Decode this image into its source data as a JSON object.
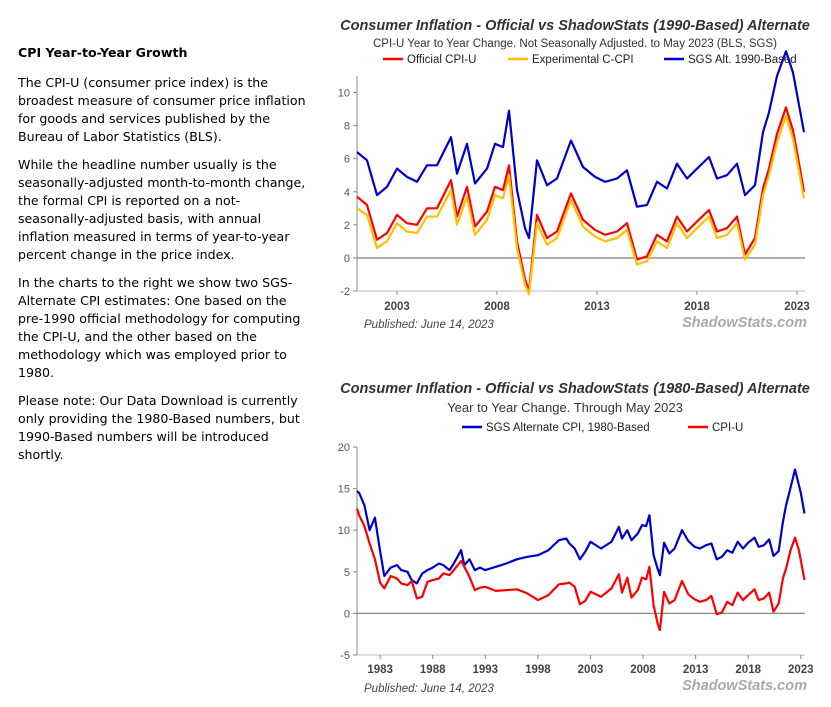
{
  "sidebar": {
    "heading": "CPI Year-to-Year Growth",
    "paragraphs": [
      "The CPI-U (consumer price index) is the broadest measure of consumer price inflation for goods and services published by the Bureau of Labor Statistics (BLS).",
      "While the headline number usually is the seasonally-adjusted month-to-month change, the formal CPI is reported on a not-seasonally-adjusted basis, with annual inflation measured in terms of year-to-year percent change in the price index.",
      "In the charts to the right we show two SGS-Alternate CPI estimates: One based on the pre-1990 official methodology for computing the CPI-U, and the other based on the methodology which was employed prior to 1980.",
      "Please note:  Our Data Download is currently only providing the 1980-Based numbers, but 1990-Based numbers will be introduced shortly."
    ]
  },
  "chart_data": [
    {
      "type": "line",
      "title": "Consumer Inflation - Official vs ShadowStats (1990-Based) Alternate",
      "subtitle": "CPI-U Year to Year Change. Not Seasonally Adjusted. to May 2023  (BLS, SGS)",
      "published": "Published: June 14, 2023",
      "watermark": "ShadowStats.com",
      "xlim": [
        2001.0,
        2023.4
      ],
      "ylim": [
        -2,
        11
      ],
      "x_ticks": [
        2003,
        2008,
        2013,
        2018,
        2023
      ],
      "y_ticks": [
        -2,
        0,
        2,
        4,
        6,
        8,
        10
      ],
      "zero_line": true,
      "legend_position": "top",
      "series": [
        {
          "name": "Official CPI-U",
          "color": "#ff0000",
          "x": [
            2001.0,
            2001.5,
            2002.0,
            2002.5,
            2003.0,
            2003.5,
            2004.0,
            2004.5,
            2005.0,
            2005.7,
            2006.0,
            2006.5,
            2006.9,
            2007.5,
            2007.9,
            2008.3,
            2008.6,
            2009.0,
            2009.4,
            2009.6,
            2010.0,
            2010.5,
            2011.0,
            2011.7,
            2012.3,
            2012.9,
            2013.4,
            2014.0,
            2014.5,
            2015.0,
            2015.5,
            2016.0,
            2016.5,
            2017.0,
            2017.5,
            2018.0,
            2018.6,
            2019.0,
            2019.5,
            2020.0,
            2020.4,
            2020.9,
            2021.3,
            2021.6,
            2022.0,
            2022.45,
            2022.8,
            2023.0,
            2023.35
          ],
          "y": [
            3.7,
            3.2,
            1.1,
            1.5,
            2.6,
            2.1,
            2.0,
            3.0,
            3.0,
            4.7,
            2.5,
            4.3,
            1.9,
            2.8,
            4.3,
            4.1,
            5.6,
            1.0,
            -1.3,
            -2.0,
            2.6,
            1.2,
            1.6,
            3.9,
            2.3,
            1.7,
            1.4,
            1.6,
            2.1,
            -0.1,
            0.1,
            1.4,
            1.0,
            2.5,
            1.6,
            2.2,
            2.9,
            1.6,
            1.8,
            2.5,
            0.2,
            1.2,
            4.2,
            5.4,
            7.5,
            9.1,
            7.7,
            6.4,
            4.0
          ]
        },
        {
          "name": "Experimental C-CPI",
          "color": "#ffc000",
          "x": [
            2001.0,
            2001.5,
            2002.0,
            2002.5,
            2003.0,
            2003.5,
            2004.0,
            2004.5,
            2005.0,
            2005.7,
            2006.0,
            2006.5,
            2006.9,
            2007.5,
            2007.9,
            2008.3,
            2008.6,
            2009.0,
            2009.4,
            2009.6,
            2010.0,
            2010.5,
            2011.0,
            2011.7,
            2012.3,
            2012.9,
            2013.4,
            2014.0,
            2014.5,
            2015.0,
            2015.5,
            2016.0,
            2016.5,
            2017.0,
            2017.5,
            2018.0,
            2018.6,
            2019.0,
            2019.5,
            2020.0,
            2020.4,
            2020.9,
            2021.3,
            2021.6,
            2022.0,
            2022.45,
            2022.8,
            2023.0,
            2023.35
          ],
          "y": [
            3.0,
            2.6,
            0.6,
            1.0,
            2.1,
            1.6,
            1.5,
            2.5,
            2.5,
            4.1,
            2.0,
            3.7,
            1.4,
            2.3,
            3.8,
            3.6,
            5.0,
            0.6,
            -1.6,
            -2.2,
            2.1,
            0.8,
            1.2,
            3.5,
            1.9,
            1.3,
            1.0,
            1.2,
            1.7,
            -0.4,
            -0.2,
            1.0,
            0.6,
            2.1,
            1.2,
            1.8,
            2.5,
            1.2,
            1.4,
            2.1,
            -0.1,
            0.8,
            3.8,
            5.0,
            7.0,
            8.6,
            7.2,
            5.9,
            3.6
          ]
        },
        {
          "name": "SGS  Alt. 1990-Based",
          "color": "#0000cc",
          "x": [
            2001.0,
            2001.5,
            2002.0,
            2002.5,
            2003.0,
            2003.5,
            2004.0,
            2004.5,
            2005.0,
            2005.7,
            2006.0,
            2006.5,
            2006.9,
            2007.5,
            2007.9,
            2008.3,
            2008.6,
            2009.0,
            2009.4,
            2009.6,
            2010.0,
            2010.5,
            2011.0,
            2011.7,
            2012.3,
            2012.9,
            2013.4,
            2014.0,
            2014.5,
            2015.0,
            2015.5,
            2016.0,
            2016.5,
            2017.0,
            2017.5,
            2018.0,
            2018.6,
            2019.0,
            2019.5,
            2020.0,
            2020.4,
            2020.9,
            2021.3,
            2021.6,
            2022.0,
            2022.45,
            2022.8,
            2023.0,
            2023.35
          ],
          "y": [
            6.4,
            5.9,
            3.8,
            4.3,
            5.4,
            4.9,
            4.6,
            5.6,
            5.6,
            7.3,
            5.1,
            6.9,
            4.5,
            5.4,
            6.9,
            6.7,
            8.9,
            4.1,
            1.8,
            1.2,
            5.9,
            4.4,
            4.8,
            7.1,
            5.5,
            4.9,
            4.6,
            4.8,
            5.3,
            3.1,
            3.2,
            4.6,
            4.2,
            5.7,
            4.8,
            5.4,
            6.1,
            4.8,
            5.0,
            5.7,
            3.8,
            4.4,
            7.6,
            8.8,
            11.0,
            12.5,
            11.2,
            9.9,
            7.6
          ]
        }
      ]
    },
    {
      "type": "line",
      "title": "Consumer Inflation - Official vs ShadowStats (1980-Based) Alternate",
      "subtitle": "Year to Year Change. Through May 2023",
      "published": "Published: June 14, 2023",
      "watermark": "ShadowStats.com",
      "xlim": [
        1980.8,
        2023.4
      ],
      "ylim": [
        -5,
        20
      ],
      "x_ticks": [
        1983,
        1988,
        1993,
        1998,
        2003,
        2008,
        2013,
        2018,
        2023
      ],
      "y_ticks": [
        -5,
        0,
        5,
        10,
        15,
        20
      ],
      "zero_line": true,
      "legend_position": "top",
      "series": [
        {
          "name": "SGS Alternate CPI, 1980-Based",
          "color": "#0000cc",
          "x": [
            1980.8,
            1981.0,
            1981.5,
            1982.0,
            1982.5,
            1983.0,
            1983.4,
            1984.0,
            1984.6,
            1985.0,
            1985.6,
            1986.0,
            1986.5,
            1987.0,
            1987.5,
            1988.0,
            1988.6,
            1989.0,
            1989.6,
            1990.0,
            1990.7,
            1991.0,
            1991.5,
            1992.0,
            1992.5,
            1993.0,
            1994.0,
            1995.0,
            1996.0,
            1997.0,
            1998.0,
            1999.0,
            2000.0,
            2000.7,
            2001.0,
            2001.5,
            2002.0,
            2002.5,
            2003.0,
            2004.0,
            2005.0,
            2005.7,
            2006.0,
            2006.5,
            2006.9,
            2007.5,
            2007.9,
            2008.3,
            2008.6,
            2009.0,
            2009.4,
            2009.6,
            2010.0,
            2010.5,
            2011.0,
            2011.7,
            2012.3,
            2012.9,
            2013.4,
            2014.0,
            2014.5,
            2015.0,
            2015.5,
            2016.0,
            2016.5,
            2017.0,
            2017.5,
            2018.0,
            2018.6,
            2019.0,
            2019.5,
            2020.0,
            2020.4,
            2020.9,
            2021.3,
            2021.6,
            2022.0,
            2022.45,
            2022.8,
            2023.0,
            2023.35
          ],
          "y": [
            14.7,
            14.5,
            13.0,
            10.0,
            11.5,
            7.5,
            4.5,
            5.5,
            5.8,
            5.2,
            5.0,
            4.0,
            3.6,
            4.8,
            5.2,
            5.5,
            6.0,
            5.8,
            5.2,
            6.0,
            7.6,
            5.8,
            6.5,
            5.2,
            5.5,
            5.2,
            5.6,
            6.0,
            6.5,
            6.8,
            7.0,
            7.6,
            8.8,
            9.0,
            8.4,
            7.8,
            6.5,
            7.4,
            8.6,
            7.8,
            8.6,
            10.4,
            9.0,
            10.0,
            8.8,
            9.6,
            10.6,
            10.5,
            11.8,
            7.0,
            5.3,
            4.6,
            8.5,
            7.2,
            7.8,
            10.0,
            8.7,
            8.0,
            7.8,
            8.2,
            8.4,
            6.5,
            6.8,
            7.6,
            7.3,
            8.6,
            7.8,
            8.5,
            9.1,
            8.0,
            8.2,
            8.9,
            6.9,
            7.5,
            11.0,
            13.0,
            15.0,
            17.3,
            15.5,
            14.5,
            12.0
          ]
        },
        {
          "name": "CPI-U",
          "color": "#ff0000",
          "x": [
            1980.8,
            1981.0,
            1981.5,
            1982.0,
            1982.5,
            1983.0,
            1983.4,
            1984.0,
            1984.6,
            1985.0,
            1985.6,
            1986.0,
            1986.5,
            1987.0,
            1987.5,
            1988.0,
            1988.6,
            1989.0,
            1989.6,
            1990.0,
            1990.7,
            1991.0,
            1991.5,
            1992.0,
            1992.5,
            1993.0,
            1994.0,
            1995.0,
            1996.0,
            1997.0,
            1998.0,
            1999.0,
            2000.0,
            2000.7,
            2001.0,
            2001.5,
            2002.0,
            2002.5,
            2003.0,
            2004.0,
            2005.0,
            2005.7,
            2006.0,
            2006.5,
            2006.9,
            2007.5,
            2007.9,
            2008.3,
            2008.6,
            2009.0,
            2009.4,
            2009.6,
            2010.0,
            2010.5,
            2011.0,
            2011.7,
            2012.3,
            2012.9,
            2013.4,
            2014.0,
            2014.5,
            2015.0,
            2015.5,
            2016.0,
            2016.5,
            2017.0,
            2017.5,
            2018.0,
            2018.6,
            2019.0,
            2019.5,
            2020.0,
            2020.4,
            2020.9,
            2021.3,
            2021.6,
            2022.0,
            2022.45,
            2022.8,
            2023.0,
            2023.35
          ],
          "y": [
            12.6,
            11.8,
            10.5,
            8.4,
            6.5,
            3.7,
            3.0,
            4.5,
            4.2,
            3.6,
            3.4,
            3.9,
            1.8,
            2.0,
            3.8,
            4.0,
            4.2,
            4.8,
            4.6,
            5.2,
            6.3,
            5.6,
            4.4,
            2.8,
            3.1,
            3.2,
            2.7,
            2.8,
            2.9,
            2.4,
            1.6,
            2.2,
            3.5,
            3.6,
            3.7,
            3.2,
            1.1,
            1.5,
            2.6,
            2.0,
            3.0,
            4.7,
            2.5,
            4.3,
            1.9,
            2.8,
            4.3,
            4.1,
            5.6,
            1.0,
            -1.3,
            -2.0,
            2.6,
            1.2,
            1.6,
            3.9,
            2.3,
            1.7,
            1.4,
            1.6,
            2.1,
            -0.1,
            0.1,
            1.4,
            1.0,
            2.5,
            1.6,
            2.2,
            2.9,
            1.6,
            1.8,
            2.5,
            0.2,
            1.2,
            4.2,
            5.4,
            7.5,
            9.1,
            7.7,
            6.4,
            4.0
          ]
        }
      ]
    }
  ]
}
